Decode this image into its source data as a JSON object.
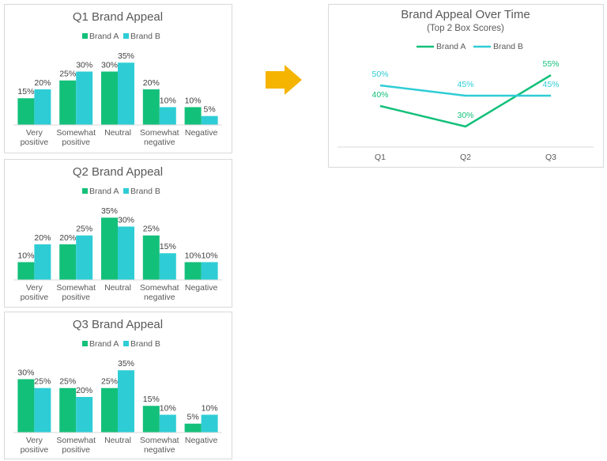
{
  "chart_data": [
    {
      "type": "bar",
      "title": "Q1 Brand Appeal",
      "categories": [
        "Very positive",
        "Somewhat positive",
        "Neutral",
        "Somewhat negative",
        "Negative"
      ],
      "series": [
        {
          "name": "Brand A",
          "color": "#13c07a",
          "values": [
            15,
            25,
            30,
            20,
            10
          ],
          "value_labels": [
            "15%",
            "25%",
            "30%",
            "20%",
            "10%"
          ]
        },
        {
          "name": "Brand B",
          "color": "#2ecdd5",
          "values": [
            20,
            30,
            35,
            10,
            5
          ],
          "value_labels": [
            "20%",
            "30%",
            "35%",
            "10%",
            "5%"
          ]
        }
      ],
      "legend": "top"
    },
    {
      "type": "bar",
      "title": "Q2 Brand Appeal",
      "categories": [
        "Very positive",
        "Somewhat positive",
        "Neutral",
        "Somewhat negative",
        "Negative"
      ],
      "series": [
        {
          "name": "Brand A",
          "color": "#13c07a",
          "values": [
            10,
            20,
            35,
            25,
            10
          ],
          "value_labels": [
            "10%",
            "20%",
            "35%",
            "25%",
            "10%"
          ]
        },
        {
          "name": "Brand B",
          "color": "#2ecdd5",
          "values": [
            20,
            25,
            30,
            15,
            10
          ],
          "value_labels": [
            "20%",
            "25%",
            "30%",
            "15%",
            "10%"
          ]
        }
      ],
      "legend": "top"
    },
    {
      "type": "bar",
      "title": "Q3 Brand Appeal",
      "categories": [
        "Very positive",
        "Somewhat positive",
        "Neutral",
        "Somewhat negative",
        "Negative"
      ],
      "series": [
        {
          "name": "Brand A",
          "color": "#13c07a",
          "values": [
            30,
            25,
            25,
            15,
            5
          ],
          "value_labels": [
            "30%",
            "25%",
            "25%",
            "15%",
            "5%"
          ]
        },
        {
          "name": "Brand B",
          "color": "#2ecdd5",
          "values": [
            25,
            20,
            35,
            10,
            10
          ],
          "value_labels": [
            "25%",
            "20%",
            "35%",
            "10%",
            "10%"
          ]
        }
      ],
      "legend": "top"
    },
    {
      "type": "line",
      "title": "Brand Appeal Over Time",
      "subtitle": "(Top 2 Box Scores)",
      "categories": [
        "Q1",
        "Q2",
        "Q3"
      ],
      "series": [
        {
          "name": "Brand A",
          "color": "#13c07a",
          "values": [
            40,
            30,
            55
          ],
          "value_labels": [
            "40%",
            "30%",
            "55%"
          ]
        },
        {
          "name": "Brand B",
          "color": "#2ecdd5",
          "values": [
            50,
            45,
            45
          ],
          "value_labels": [
            "50%",
            "45%",
            "45%"
          ]
        }
      ],
      "legend": "top"
    }
  ]
}
